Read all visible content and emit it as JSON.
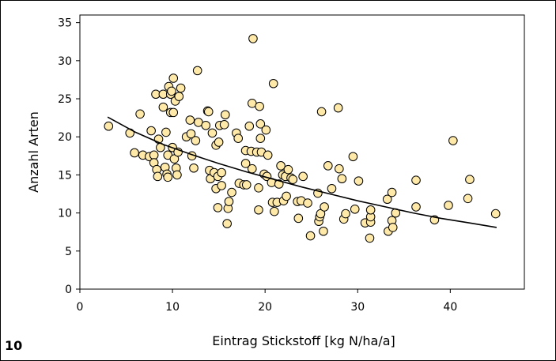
{
  "panel_number": "10",
  "chart_data": {
    "type": "scatter",
    "title": "",
    "xlabel": "Eintrag Stickstoff [kg N/ha/a]",
    "ylabel": "Anzahl Arten",
    "xlim": [
      0,
      48
    ],
    "ylim": [
      0,
      36
    ],
    "x_ticks": [
      0,
      10,
      20,
      30,
      40
    ],
    "y_ticks": [
      0,
      5,
      10,
      15,
      20,
      25,
      30,
      35
    ],
    "x_tick_labels": [
      "0",
      "10",
      "20",
      "30",
      "40"
    ],
    "y_tick_labels": [
      "0",
      "5",
      "10",
      "15",
      "20",
      "25",
      "30",
      "35"
    ],
    "grid": false,
    "legend": "none",
    "marker_fill": "#ffe9a8",
    "marker_edge": "#000000",
    "points": [
      [
        3.1,
        21.4
      ],
      [
        5.4,
        20.5
      ],
      [
        5.9,
        17.9
      ],
      [
        6.5,
        23.0
      ],
      [
        6.8,
        17.6
      ],
      [
        7.5,
        17.4
      ],
      [
        7.7,
        20.8
      ],
      [
        8.0,
        17.6
      ],
      [
        8.0,
        16.6
      ],
      [
        8.2,
        25.6
      ],
      [
        8.3,
        15.7
      ],
      [
        8.4,
        14.8
      ],
      [
        8.5,
        19.7
      ],
      [
        8.7,
        18.6
      ],
      [
        9.0,
        23.9
      ],
      [
        9.0,
        25.6
      ],
      [
        9.2,
        16.0
      ],
      [
        9.3,
        20.6
      ],
      [
        9.4,
        15.1
      ],
      [
        9.5,
        14.7
      ],
      [
        9.5,
        17.6
      ],
      [
        9.6,
        26.6
      ],
      [
        9.8,
        25.6
      ],
      [
        9.8,
        23.2
      ],
      [
        9.9,
        26.0
      ],
      [
        10.0,
        18.6
      ],
      [
        10.1,
        27.7
      ],
      [
        10.1,
        23.2
      ],
      [
        10.2,
        17.1
      ],
      [
        10.3,
        24.7
      ],
      [
        10.4,
        15.9
      ],
      [
        10.5,
        15.0
      ],
      [
        10.6,
        18.0
      ],
      [
        10.7,
        25.3
      ],
      [
        10.9,
        26.4
      ],
      [
        11.5,
        20.0
      ],
      [
        11.9,
        22.2
      ],
      [
        12.0,
        20.4
      ],
      [
        12.1,
        17.5
      ],
      [
        12.3,
        15.9
      ],
      [
        12.5,
        19.5
      ],
      [
        12.7,
        28.7
      ],
      [
        12.8,
        21.9
      ],
      [
        13.6,
        21.5
      ],
      [
        13.8,
        23.4
      ],
      [
        13.9,
        23.3
      ],
      [
        14.0,
        15.6
      ],
      [
        14.1,
        14.5
      ],
      [
        14.3,
        20.5
      ],
      [
        14.5,
        15.3
      ],
      [
        14.7,
        13.2
      ],
      [
        14.7,
        18.9
      ],
      [
        14.9,
        10.7
      ],
      [
        14.9,
        14.8
      ],
      [
        15.0,
        19.3
      ],
      [
        15.1,
        21.5
      ],
      [
        15.3,
        13.6
      ],
      [
        15.3,
        15.3
      ],
      [
        15.6,
        21.6
      ],
      [
        15.7,
        22.9
      ],
      [
        15.9,
        8.6
      ],
      [
        16.0,
        10.6
      ],
      [
        16.1,
        11.5
      ],
      [
        16.4,
        12.7
      ],
      [
        16.9,
        20.5
      ],
      [
        17.1,
        19.8
      ],
      [
        17.2,
        13.9
      ],
      [
        17.7,
        13.7
      ],
      [
        17.9,
        16.5
      ],
      [
        17.9,
        18.2
      ],
      [
        18.0,
        13.7
      ],
      [
        18.3,
        21.4
      ],
      [
        18.5,
        18.1
      ],
      [
        18.6,
        24.4
      ],
      [
        18.6,
        15.8
      ],
      [
        18.7,
        32.9
      ],
      [
        19.1,
        18.0
      ],
      [
        19.3,
        10.4
      ],
      [
        19.3,
        13.3
      ],
      [
        19.4,
        24.0
      ],
      [
        19.5,
        19.8
      ],
      [
        19.5,
        21.7
      ],
      [
        19.6,
        18.0
      ],
      [
        19.9,
        15.1
      ],
      [
        20.1,
        20.9
      ],
      [
        20.2,
        14.8
      ],
      [
        20.3,
        17.6
      ],
      [
        20.7,
        14.0
      ],
      [
        20.8,
        11.4
      ],
      [
        20.9,
        27.0
      ],
      [
        21.0,
        10.2
      ],
      [
        21.3,
        11.4
      ],
      [
        21.5,
        13.8
      ],
      [
        21.7,
        16.2
      ],
      [
        21.9,
        15.0
      ],
      [
        22.0,
        11.6
      ],
      [
        22.2,
        14.8
      ],
      [
        22.3,
        12.2
      ],
      [
        22.5,
        15.7
      ],
      [
        22.8,
        14.6
      ],
      [
        23.0,
        14.4
      ],
      [
        23.5,
        11.5
      ],
      [
        23.6,
        9.3
      ],
      [
        23.9,
        11.6
      ],
      [
        24.1,
        14.8
      ],
      [
        24.6,
        11.3
      ],
      [
        24.9,
        7.0
      ],
      [
        25.7,
        12.6
      ],
      [
        25.8,
        8.9
      ],
      [
        25.9,
        9.5
      ],
      [
        26.0,
        9.9
      ],
      [
        26.1,
        23.3
      ],
      [
        26.3,
        7.6
      ],
      [
        26.4,
        10.8
      ],
      [
        26.8,
        16.2
      ],
      [
        27.2,
        13.2
      ],
      [
        27.9,
        23.8
      ],
      [
        28.0,
        15.8
      ],
      [
        28.3,
        14.5
      ],
      [
        28.5,
        9.2
      ],
      [
        28.7,
        9.9
      ],
      [
        29.5,
        17.4
      ],
      [
        29.7,
        10.5
      ],
      [
        30.1,
        14.2
      ],
      [
        30.8,
        8.7
      ],
      [
        31.3,
        6.7
      ],
      [
        31.4,
        8.8
      ],
      [
        31.4,
        9.5
      ],
      [
        31.4,
        10.4
      ],
      [
        33.2,
        11.8
      ],
      [
        33.3,
        7.6
      ],
      [
        33.7,
        12.7
      ],
      [
        33.7,
        9.0
      ],
      [
        33.8,
        8.1
      ],
      [
        34.1,
        10.0
      ],
      [
        36.3,
        14.3
      ],
      [
        36.3,
        10.8
      ],
      [
        38.3,
        9.1
      ],
      [
        39.8,
        11.0
      ],
      [
        40.3,
        19.5
      ],
      [
        41.9,
        11.9
      ],
      [
        42.1,
        14.4
      ],
      [
        44.9,
        9.9
      ]
    ],
    "trendline": {
      "type": "power",
      "x": [
        3,
        6,
        9,
        12,
        15,
        18,
        21,
        24,
        27,
        30,
        33,
        36,
        39,
        42,
        45
      ],
      "y": [
        22.6,
        20.6,
        19.0,
        17.7,
        16.5,
        15.4,
        14.4,
        13.4,
        12.5,
        11.6,
        10.8,
        10.0,
        9.3,
        8.7,
        8.1
      ]
    }
  }
}
